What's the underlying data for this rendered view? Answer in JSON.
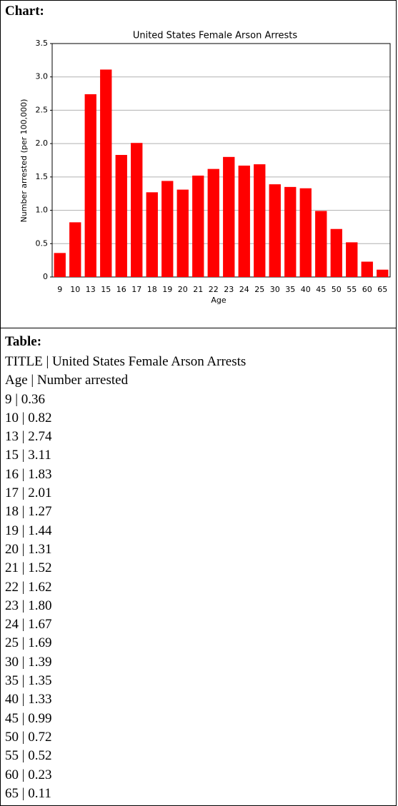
{
  "chart_heading": "Chart:",
  "chart_data": {
    "type": "bar",
    "title": "United States Female Arson Arrests",
    "x_label": "Age",
    "y_label": "Number arrested (per 100,000)",
    "categories": [
      "9",
      "10",
      "13",
      "15",
      "16",
      "17",
      "18",
      "19",
      "20",
      "21",
      "22",
      "23",
      "24",
      "25",
      "30",
      "35",
      "40",
      "45",
      "50",
      "55",
      "60",
      "65"
    ],
    "values": [
      0.36,
      0.82,
      2.74,
      3.11,
      1.83,
      2.01,
      1.27,
      1.44,
      1.31,
      1.52,
      1.62,
      1.8,
      1.67,
      1.69,
      1.39,
      1.35,
      1.33,
      0.99,
      0.72,
      0.52,
      0.23,
      0.11
    ],
    "color": "#ff0000",
    "ylim": [
      0,
      3.5
    ],
    "yticks": [
      0,
      0.5,
      {
        "value": 1,
        "label": "1.0"
      },
      1.5,
      {
        "value": 2,
        "label": "2.0"
      },
      2.5,
      {
        "value": 3,
        "label": "3.0"
      },
      3.5
    ],
    "grid": true
  },
  "table_heading": "Table:",
  "table": {
    "lines": [
      "TITLE | United States Female Arson Arrests",
      "Age | Number arrested",
      "9 | 0.36",
      "10 | 0.82",
      "13 | 2.74",
      "15 | 3.11",
      "16 | 1.83",
      "17 | 2.01",
      "18 | 1.27",
      "19 | 1.44",
      "20 | 1.31",
      "21 | 1.52",
      "22 | 1.62",
      "23 | 1.80",
      "24 | 1.67",
      "25 | 1.69",
      "30 | 1.39",
      "35 | 1.35",
      "40 | 1.33",
      "45 | 0.99",
      "50 | 0.72",
      "55 | 0.52",
      "60 | 0.23",
      "65 | 0.11"
    ]
  }
}
